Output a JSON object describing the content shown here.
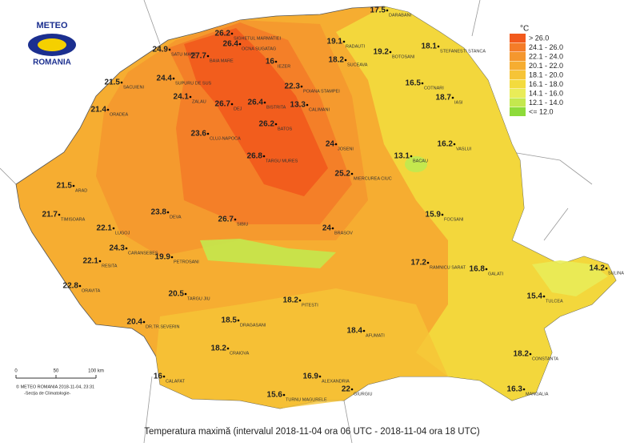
{
  "logo": {
    "top": "METEO",
    "bottom": "ROMANIA"
  },
  "legend": {
    "unit": "°C",
    "items": [
      {
        "label": "> 26.0",
        "color": "#f25a1c"
      },
      {
        "label": "24.1 - 26.0",
        "color": "#f47c28"
      },
      {
        "label": "22.1 - 24.0",
        "color": "#f5972e"
      },
      {
        "label": "20.1 - 22.0",
        "color": "#f6ad31"
      },
      {
        "label": "18.1 - 20.0",
        "color": "#f6c437"
      },
      {
        "label": "16.1 - 18.0",
        "color": "#f3db3e"
      },
      {
        "label": "14.1 - 16.0",
        "color": "#e9ec58"
      },
      {
        "label": "12.1 - 14.0",
        "color": "#c4e84e"
      },
      {
        "label": "<= 12.0",
        "color": "#8edb3a"
      }
    ]
  },
  "stations": [
    {
      "name": "SIGHETUL MARMATIEI",
      "value": 26.2
    },
    {
      "name": "SATU MARE",
      "value": 24.9
    },
    {
      "name": "BAIA MARE",
      "value": 27.7
    },
    {
      "name": "OCNA SUGATAG",
      "value": 26.4
    },
    {
      "name": "IEZER",
      "value": 16
    },
    {
      "name": "RADAUTI",
      "value": 19.1
    },
    {
      "name": "SUCEAVA",
      "value": 18.2
    },
    {
      "name": "BOTOSANI",
      "value": 19.2
    },
    {
      "name": "STEFANESTI STANCA",
      "value": 18.1
    },
    {
      "name": "DARABANI",
      "value": 17.5
    },
    {
      "name": "SUPURU DE SUS",
      "value": 24.4
    },
    {
      "name": "SACUIENI",
      "value": 21.5
    },
    {
      "name": "ORADEA",
      "value": 21.4
    },
    {
      "name": "ZALAU",
      "value": 24.1
    },
    {
      "name": "DEJ",
      "value": 26.7
    },
    {
      "name": "BISTRITA",
      "value": 26.4
    },
    {
      "name": "CALIMANI",
      "value": 13.3
    },
    {
      "name": "POIANA STAMPEI",
      "value": 22.3
    },
    {
      "name": "COTNARI",
      "value": 16.5
    },
    {
      "name": "IASI",
      "value": 18.7
    },
    {
      "name": "CLUJ-NAPOCA",
      "value": 23.6
    },
    {
      "name": "TARGU MURES",
      "value": 26.8
    },
    {
      "name": "BATOS",
      "value": 26.2
    },
    {
      "name": "JOSENI",
      "value": 24
    },
    {
      "name": "MIERCUREA CIUC",
      "value": 25.2
    },
    {
      "name": "BACAU",
      "value": 13.1
    },
    {
      "name": "VASLUI",
      "value": 16.2
    },
    {
      "name": "ARAD",
      "value": 21.5
    },
    {
      "name": "TIMISOARA",
      "value": 21.7
    },
    {
      "name": "DEVA",
      "value": 23.8
    },
    {
      "name": "SIBIU",
      "value": 26.7
    },
    {
      "name": "BRASOV",
      "value": 24
    },
    {
      "name": "FOCSANI",
      "value": 15.9
    },
    {
      "name": "GALATI",
      "value": 16.8
    },
    {
      "name": "TULCEA",
      "value": 15.4
    },
    {
      "name": "SULINA",
      "value": 14.2
    },
    {
      "name": "CONSTANTA",
      "value": 18.2
    },
    {
      "name": "MANGALIA",
      "value": 16.3
    },
    {
      "name": "AFUMATI",
      "value": 18.4
    },
    {
      "name": "CRAIOVA",
      "value": 18.2
    },
    {
      "name": "DR.TR.SEVERIN",
      "value": 20.4
    },
    {
      "name": "CALAFAT",
      "value": 16
    },
    {
      "name": "DRAGASANI",
      "value": 18.5
    },
    {
      "name": "PITESTI",
      "value": 18.2
    },
    {
      "name": "RAMNICU SARAT",
      "value": 17.2
    },
    {
      "name": "GIURGIU",
      "value": 22
    },
    {
      "name": "ALEXANDRIA",
      "value": 16.9
    },
    {
      "name": "TURNU MAGURELE",
      "value": 15.6
    },
    {
      "name": "LUGOJ",
      "value": 22.1
    },
    {
      "name": "CARANSEBES",
      "value": 24.3
    },
    {
      "name": "RESITA",
      "value": 22.1
    },
    {
      "name": "ORAVITA",
      "value": 22.8
    },
    {
      "name": "PETROSANI",
      "value": 19.9
    },
    {
      "name": "TARGU JIU",
      "value": 20.5
    }
  ],
  "scale": {
    "labels": [
      "0",
      "50",
      "100 km"
    ]
  },
  "credits": [
    "© METEO ROMANIA 2018-11-04, 23:31",
    "-Secția de Climatologie-"
  ],
  "title": "Temperatura maximă (intervalul 2018-11-04 ora 06 UTC - 2018-11-04 ora 18 UTC)"
}
